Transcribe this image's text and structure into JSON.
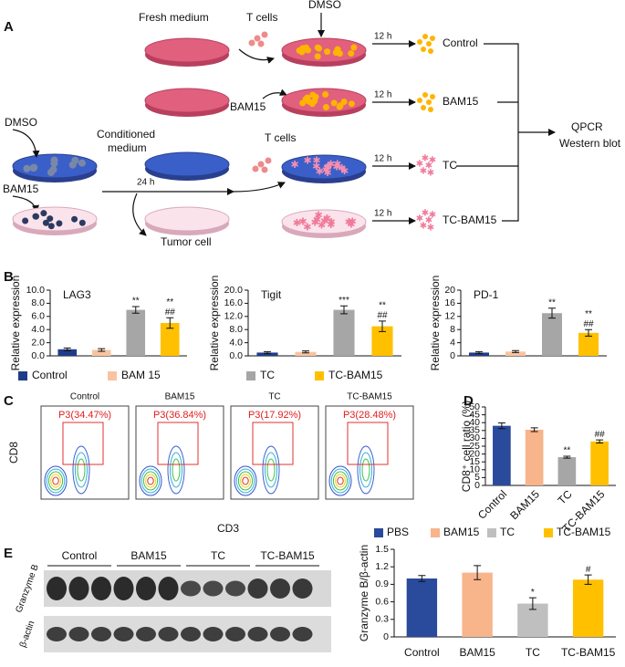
{
  "panel_labels": [
    "A",
    "B",
    "C",
    "D",
    "E"
  ],
  "diagram": {
    "fresh_medium": "Fresh medium",
    "t_cells": [
      "T cells",
      "T cells"
    ],
    "dmso": [
      "DMSO",
      "DMSO"
    ],
    "bam15": [
      "BAM15",
      "BAM15"
    ],
    "time_12h": [
      "12 h",
      "12 h",
      "12 h",
      "12 h"
    ],
    "outputs": [
      "Control",
      "BAM15",
      "TC",
      "TC-BAM15"
    ],
    "conditioned_medium": [
      "Conditioned",
      "medium"
    ],
    "time_24h": "24 h",
    "tumor_cell": "Tumor cell",
    "assays": [
      "QPCR",
      "Western blot"
    ]
  },
  "legend_b": [
    {
      "name": "Control",
      "color": "#1f3c88"
    },
    {
      "name": "BAM 15",
      "color": "#f8c4a0"
    },
    {
      "name": "TC",
      "color": "#a6a6a6"
    },
    {
      "name": "TC-BAM15",
      "color": "#ffc000"
    }
  ],
  "chart_data": [
    {
      "type": "bar",
      "title": "LAG3",
      "y_label": "Relative expression",
      "categories": [
        null,
        null,
        null,
        null
      ],
      "values": [
        1.0,
        0.9,
        7.0,
        5.0
      ],
      "errors": [
        0.2,
        0.2,
        0.5,
        0.8
      ],
      "colors": [
        "#1f3c88",
        "#f8c4a0",
        "#a6a6a6",
        "#ffc000"
      ],
      "annotations": [
        null,
        null,
        [
          "**"
        ],
        [
          "**",
          "##"
        ]
      ],
      "ylim": [
        0,
        10
      ],
      "yticks": [
        {
          "value": 0,
          "label": "0.0"
        },
        {
          "value": 2,
          "label": "2.0"
        },
        {
          "value": 4,
          "label": "4.0"
        },
        {
          "value": 6,
          "label": "6.0"
        },
        {
          "value": 8,
          "label": "8.0"
        },
        {
          "value": 10,
          "label": "10.0"
        }
      ]
    },
    {
      "type": "bar",
      "title": "Tigit",
      "y_label": "Relative expression",
      "categories": [
        null,
        null,
        null,
        null
      ],
      "values": [
        1.0,
        1.2,
        14.0,
        9.0
      ],
      "errors": [
        0.3,
        0.3,
        1.2,
        1.6
      ],
      "colors": [
        "#1f3c88",
        "#f8c4a0",
        "#a6a6a6",
        "#ffc000"
      ],
      "annotations": [
        null,
        null,
        [
          "***"
        ],
        [
          "**",
          "##"
        ]
      ],
      "ylim": [
        0,
        20
      ],
      "yticks": [
        {
          "value": 0,
          "label": "0.0"
        },
        {
          "value": 4,
          "label": "4.0"
        },
        {
          "value": 8,
          "label": "8.0"
        },
        {
          "value": 12,
          "label": "12.0"
        },
        {
          "value": 16,
          "label": "16.0"
        },
        {
          "value": 20,
          "label": "20.0"
        }
      ]
    },
    {
      "type": "bar",
      "title": "PD-1",
      "y_label": "Relative expression",
      "categories": [
        null,
        null,
        null,
        null
      ],
      "values": [
        1.0,
        1.3,
        13.0,
        7.0
      ],
      "errors": [
        0.3,
        0.3,
        1.5,
        1.0
      ],
      "colors": [
        "#1f3c88",
        "#f8c4a0",
        "#a6a6a6",
        "#ffc000"
      ],
      "annotations": [
        null,
        null,
        [
          "**"
        ],
        [
          "**",
          "##"
        ]
      ],
      "ylim": [
        0,
        20
      ],
      "yticks": [
        0,
        4,
        8,
        12,
        16,
        20
      ]
    },
    {
      "type": "bar",
      "y_label": "CD8⁺ cell ratio (%)",
      "categories": [
        "Control",
        "BAM15",
        "TC",
        "TC-BAM15"
      ],
      "values": [
        38,
        35.5,
        18,
        28
      ],
      "errors": [
        1.8,
        1.2,
        0.6,
        1.0
      ],
      "colors": [
        "#2a4a9c",
        "#f8b48a",
        "#a6a6a6",
        "#ffc000"
      ],
      "annotations": [
        null,
        null,
        [
          "**"
        ],
        [
          "##"
        ]
      ],
      "ylim": [
        0,
        50
      ],
      "yticks": [
        0,
        5,
        10,
        15,
        20,
        25,
        30,
        35,
        40,
        45,
        50
      ]
    },
    {
      "type": "bar",
      "y_label": "Granzyme B/β-actin",
      "categories": [
        "Control",
        "BAM15",
        "TC",
        "TC-BAM15"
      ],
      "legend": [
        "PBS",
        "BAM15",
        "TC",
        "TC-BAM15"
      ],
      "values": [
        1.0,
        1.1,
        0.57,
        0.98
      ],
      "errors": [
        0.05,
        0.12,
        0.1,
        0.08
      ],
      "colors": [
        "#2a4a9c",
        "#f8b48a",
        "#bfbfbf",
        "#ffc000"
      ],
      "annotations": [
        null,
        null,
        [
          "*"
        ],
        [
          "#"
        ]
      ],
      "ylim": [
        0,
        1.5
      ],
      "yticks": [
        0,
        0.3,
        0.6,
        0.9,
        1.2,
        1.5
      ]
    }
  ],
  "flow": {
    "groups": [
      "Control",
      "BAM15",
      "TC",
      "TC-BAM15"
    ],
    "gates": [
      "P3(34.47%)",
      "P3(36.84%)",
      "P3(17.92%)",
      "P3(28.48%)"
    ],
    "y_label": "CD8",
    "x_label": "CD3"
  },
  "blot": {
    "groups": [
      "Control",
      "BAM15",
      "TC",
      "TC-BAM15"
    ],
    "proteins": [
      "Granzyme B",
      "β-actin"
    ]
  }
}
